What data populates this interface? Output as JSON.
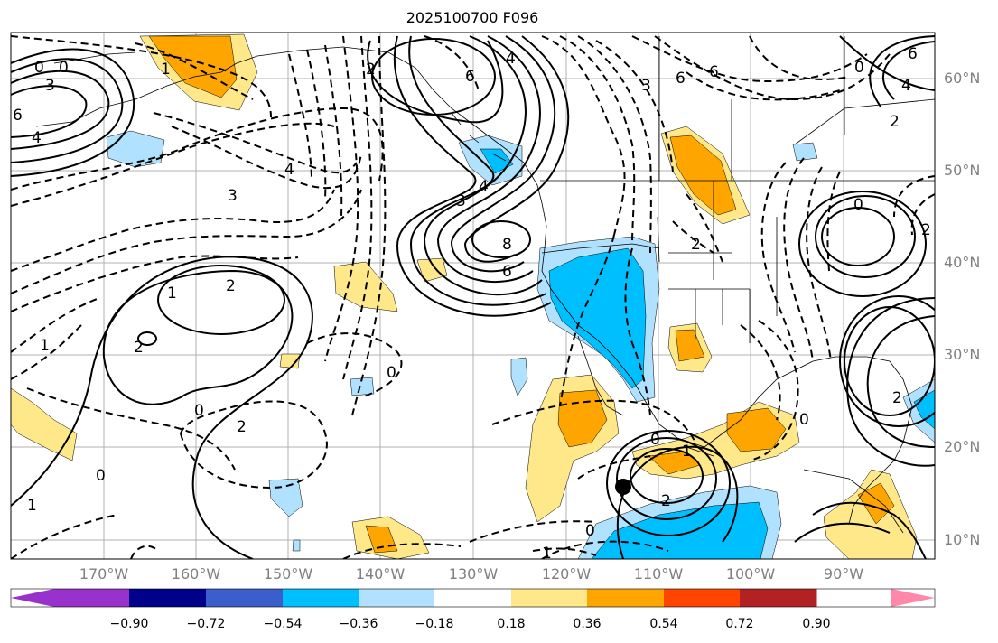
{
  "title": "2025100700 F096",
  "lat_labels": [
    "60°N",
    "50°N",
    "40°N",
    "30°N",
    "20°N",
    "10°N"
  ],
  "lon_labels": [
    "170°W",
    "160°W",
    "150°W",
    "140°W",
    "130°W",
    "120°W",
    "110°W",
    "100°W",
    "90°W"
  ],
  "colorbar": {
    "ticks": [
      "−0.90",
      "−0.72",
      "−0.54",
      "−0.36",
      "−0.18",
      "0.18",
      "0.36",
      "0.54",
      "0.72",
      "0.90"
    ],
    "colors": [
      "#9932cc",
      "#00008b",
      "#3a5fcd",
      "#00bfff",
      "#b0e2ff",
      "#ffffff",
      "#ffe88a",
      "#ffa500",
      "#ff4500",
      "#b22222",
      "#ff88aa"
    ]
  },
  "contour_labels": [
    "0",
    "6",
    "4",
    "3",
    "0",
    "6",
    "2",
    "4",
    "6",
    "4",
    "3",
    "1",
    "2",
    "2",
    "1",
    "3",
    "4",
    "3",
    "6",
    "8",
    "6",
    "2",
    "0",
    "0",
    "2",
    "0",
    "0",
    "1",
    "2",
    "0",
    "1",
    "0",
    "0",
    "2",
    "1",
    "2",
    "4",
    "6",
    "2",
    "0",
    "1"
  ],
  "marker": "station-dot"
}
